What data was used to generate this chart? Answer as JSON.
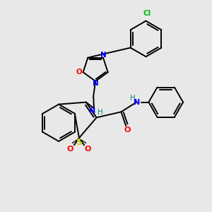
{
  "background_color": "#e8e8e8",
  "atom_colors": {
    "N": "#0000ff",
    "O": "#ff0000",
    "S": "#cccc00",
    "Cl": "#00bb00",
    "H": "#008888"
  },
  "figsize": [
    3.0,
    3.0
  ],
  "dpi": 100
}
